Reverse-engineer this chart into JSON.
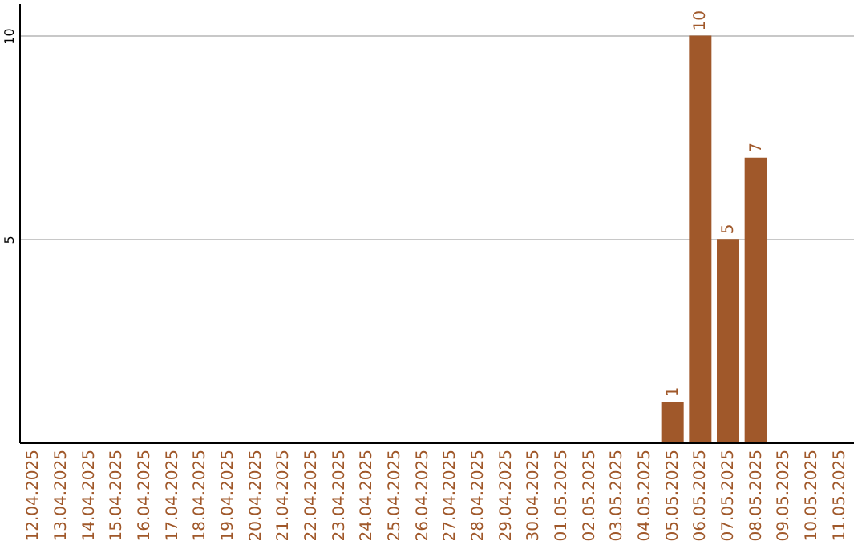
{
  "chart_data": {
    "type": "bar",
    "categories": [
      "12.04.2025",
      "13.04.2025",
      "14.04.2025",
      "15.04.2025",
      "16.04.2025",
      "17.04.2025",
      "18.04.2025",
      "19.04.2025",
      "20.04.2025",
      "21.04.2025",
      "22.04.2025",
      "23.04.2025",
      "24.04.2025",
      "25.04.2025",
      "26.04.2025",
      "27.04.2025",
      "28.04.2025",
      "29.04.2025",
      "30.04.2025",
      "01.05.2025",
      "02.05.2025",
      "03.05.2025",
      "04.05.2025",
      "05.05.2025",
      "06.05.2025",
      "07.05.2025",
      "08.05.2025",
      "09.05.2025",
      "10.05.2025",
      "11.05.2025"
    ],
    "values": [
      0,
      0,
      0,
      0,
      0,
      0,
      0,
      0,
      0,
      0,
      0,
      0,
      0,
      0,
      0,
      0,
      0,
      0,
      0,
      0,
      0,
      0,
      0,
      1,
      10,
      5,
      7,
      0,
      0,
      0
    ],
    "value_labels": [
      null,
      null,
      null,
      null,
      null,
      null,
      null,
      null,
      null,
      null,
      null,
      null,
      null,
      null,
      null,
      null,
      null,
      null,
      null,
      null,
      null,
      null,
      null,
      "1",
      "10",
      "5",
      "7",
      null,
      null,
      null
    ],
    "color": "#a0582a",
    "ylim": [
      0,
      10.8
    ],
    "yticks": [
      5,
      10
    ],
    "grid": "y"
  }
}
